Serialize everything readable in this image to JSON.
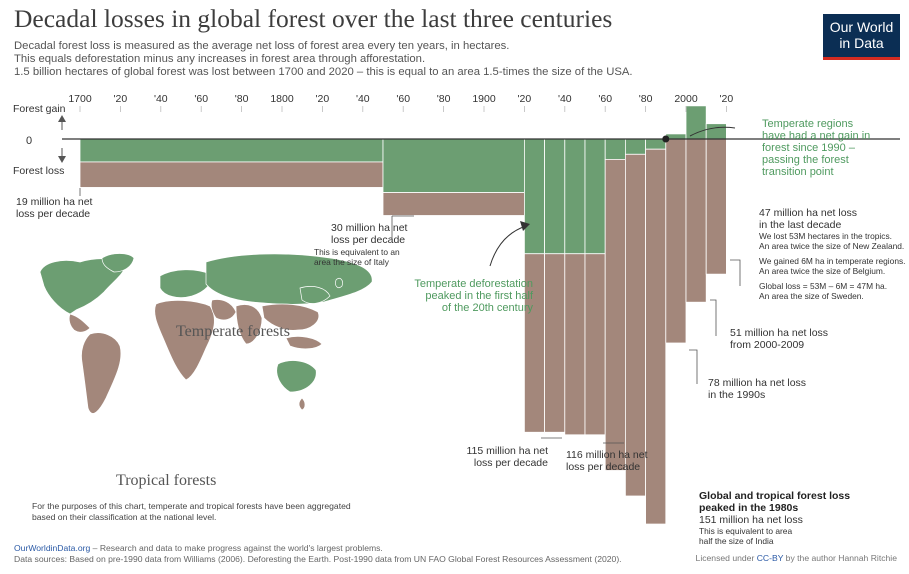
{
  "header": {
    "title": "Decadal losses in global forest over the last three centuries",
    "subtitle_lines": [
      "Decadal forest loss is measured as the average net loss of forest area every ten years, in hectares.",
      "This equals deforestation minus any increases in forest area through afforestation.",
      "1.5 billion hectares of global forest was lost between 1700 and 2020 – this is equal to an area 1.5-times the size of the USA."
    ]
  },
  "logo": {
    "line1": "Our World",
    "line2": "in Data"
  },
  "axis": {
    "gain_label": "Forest gain",
    "zero_label": "0",
    "loss_label": "Forest loss",
    "x_ticks": [
      "1700",
      "'20",
      "'40",
      "'60",
      "'80",
      "1800",
      "'20",
      "'40",
      "'60",
      "'80",
      "1900",
      "'20",
      "'40",
      "'60",
      "'80",
      "2000",
      "'20"
    ]
  },
  "colors": {
    "temperate": "#6c9e72",
    "tropical": "#a3877b",
    "zero_line": "#333333",
    "green_text": "#4f9a5f"
  },
  "chart_data": {
    "type": "bar",
    "units": "million hectares net change per decade (negative = loss)",
    "x_start": 1700,
    "decade_bins": [
      {
        "start": 1700,
        "end": 1850,
        "temperate": -9,
        "tropical": -10,
        "total": -19
      },
      {
        "start": 1850,
        "end": 1920,
        "temperate": -21,
        "tropical": -9,
        "total": -30
      },
      {
        "start": 1920,
        "end": 1930,
        "temperate": -45,
        "tropical": -70,
        "total": -115
      },
      {
        "start": 1930,
        "end": 1940,
        "temperate": -45,
        "tropical": -70,
        "total": -115
      },
      {
        "start": 1940,
        "end": 1950,
        "temperate": -45,
        "tropical": -71,
        "total": -116
      },
      {
        "start": 1950,
        "end": 1960,
        "temperate": -45,
        "tropical": -71,
        "total": -116
      },
      {
        "start": 1960,
        "end": 1970,
        "temperate": -8,
        "tropical": -122,
        "total": -130
      },
      {
        "start": 1970,
        "end": 1980,
        "temperate": -6,
        "tropical": -134,
        "total": -140
      },
      {
        "start": 1980,
        "end": 1990,
        "temperate": -4,
        "tropical": -147,
        "total": -151
      },
      {
        "start": 1990,
        "end": 2000,
        "temperate": 2,
        "tropical": -80,
        "total": -78
      },
      {
        "start": 2000,
        "end": 2010,
        "temperate": 13,
        "tropical": -64,
        "total": -51
      },
      {
        "start": 2010,
        "end": 2020,
        "temperate": 6,
        "tropical": -53,
        "total": -47
      }
    ],
    "legend": [
      "Temperate forests",
      "Tropical forests"
    ]
  },
  "annotations": {
    "a1700": [
      "19 million ha net",
      "loss per decade"
    ],
    "a1850": [
      "30 million ha net",
      "loss per decade"
    ],
    "a1850_small": [
      "This is equivalent to an",
      "area the size of Italy"
    ],
    "a_temp_peak": [
      "Temperate deforestation",
      "peaked in the first half",
      "of the 20th century"
    ],
    "a1920": [
      "115 million ha net",
      "loss per decade"
    ],
    "a1940": [
      "116 million ha net",
      "loss per decade"
    ],
    "a1980_bold": [
      "Global and tropical forest loss",
      "peaked in the 1980s"
    ],
    "a1980": "151 million ha net loss",
    "a1980_small": [
      "This is equivalent to area",
      "half the size of India"
    ],
    "a1990": [
      "78 million ha net loss",
      "in the 1990s"
    ],
    "a2000": [
      "51 million ha net loss",
      "from 2000-2009"
    ],
    "a2010": [
      "47 million ha net loss",
      "in the last decade"
    ],
    "a2010_small1": [
      "We lost 53M hectares in the tropics.",
      "An area twice the size of New Zealand."
    ],
    "a2010_small2": [
      "We gained 6M ha in temperate regions.",
      "An area twice the size of Belgium."
    ],
    "a2010_small3": [
      "Global loss = 53M – 6M = 47M ha.",
      "An area the size of Sweden."
    ],
    "a_transition": [
      "Temperate regions",
      "have had a net gain in",
      "forest since 1990 –",
      "passing the forest",
      "transition point"
    ]
  },
  "map": {
    "temperate_label": "Temperate forests",
    "tropical_label": "Tropical forests",
    "note": "For the purposes of this chart, temperate and tropical forests have been aggregated based on their classification at the national level."
  },
  "footer": {
    "site": "OurWorldinData.org",
    "site_tail": " – Research and data to make progress against the world's largest problems.",
    "sources": "Data sources: Based on pre-1990 data from Williams (2006). Deforesting the Earth. Post-1990 data from UN FAO Global Forest Resources Assessment (2020).",
    "license_pre": "Licensed under ",
    "license_link": "CC-BY",
    "license_post": " by the author Hannah Ritchie"
  }
}
